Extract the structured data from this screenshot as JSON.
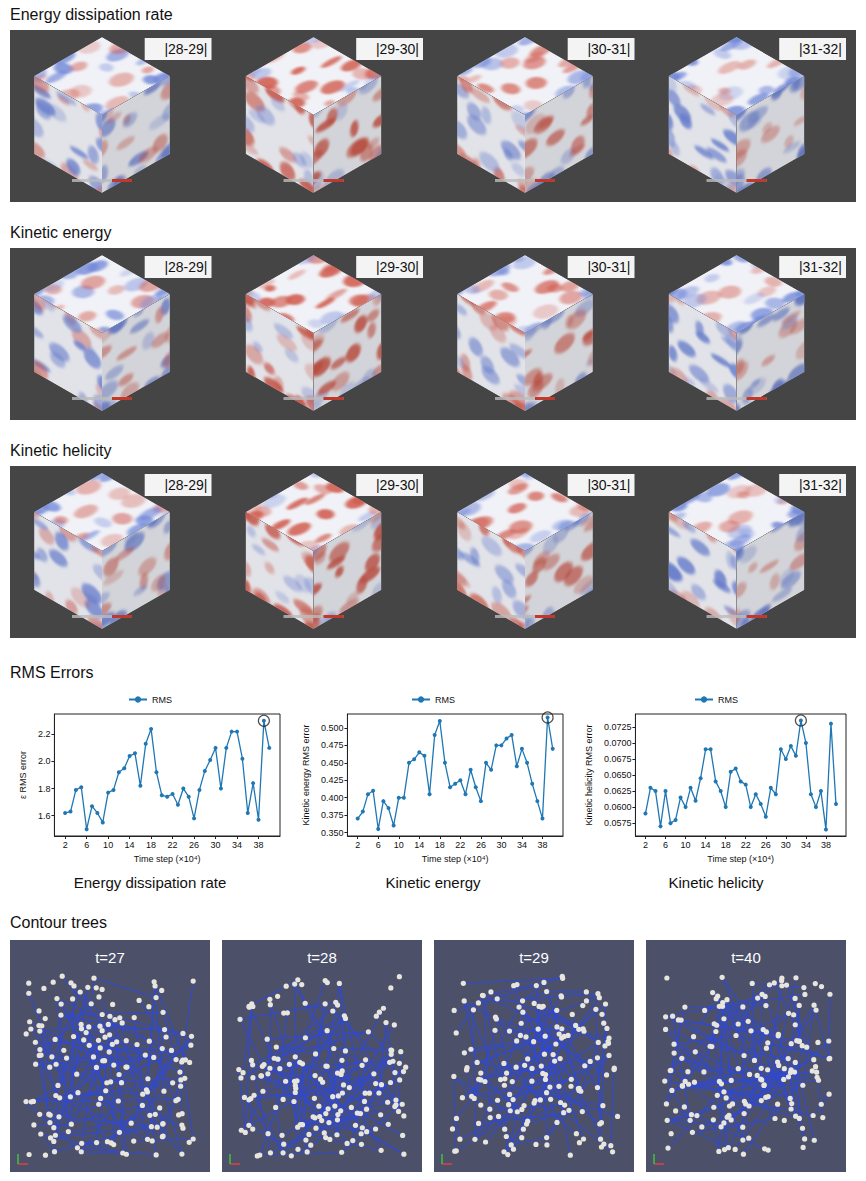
{
  "sections": [
    {
      "title": "Energy dissipation rate",
      "frames": [
        "|28-29|",
        "|29-30|",
        "|30-31|",
        "|31-32|"
      ]
    },
    {
      "title": "Kinetic energy",
      "frames": [
        "|28-29|",
        "|29-30|",
        "|30-31|",
        "|31-32|"
      ]
    },
    {
      "title": "Kinetic helicity",
      "frames": [
        "|28-29|",
        "|29-30|",
        "|30-31|",
        "|31-32|"
      ]
    }
  ],
  "rms_title": "RMS Errors",
  "chart_data": [
    {
      "type": "line",
      "title": "Energy dissipation rate",
      "xlabel": "Time step (×10⁴)",
      "ylabel": "ε RMS error",
      "legend": "top",
      "grid": false,
      "x": [
        2,
        3,
        4,
        5,
        6,
        7,
        8,
        9,
        10,
        11,
        12,
        13,
        14,
        15,
        16,
        17,
        18,
        19,
        20,
        21,
        22,
        23,
        24,
        25,
        26,
        27,
        28,
        29,
        30,
        31,
        32,
        33,
        34,
        35,
        36,
        37,
        38,
        39,
        40
      ],
      "series": [
        {
          "name": "RMS",
          "color": "#1f77b4",
          "marker": "circle",
          "values": [
            1.62,
            1.63,
            1.79,
            1.81,
            1.5,
            1.67,
            1.62,
            1.55,
            1.77,
            1.79,
            1.92,
            1.95,
            2.04,
            2.06,
            1.82,
            2.13,
            2.24,
            1.92,
            1.75,
            1.74,
            1.76,
            1.68,
            1.8,
            1.74,
            1.58,
            1.79,
            1.93,
            2.01,
            2.1,
            1.8,
            2.1,
            2.22,
            2.22,
            2.02,
            1.62,
            1.84,
            1.57,
            2.3,
            2.1
          ]
        }
      ],
      "highlight": {
        "x": 39
      },
      "xlim": [
        0,
        42
      ],
      "xticks": [
        2,
        6,
        10,
        14,
        18,
        22,
        26,
        30,
        34,
        38
      ],
      "ylim": [
        1.45,
        2.35
      ],
      "yticks": [
        1.6,
        1.8,
        {
          "value": 2,
          "label": "2.0"
        },
        2.2
      ]
    },
    {
      "type": "line",
      "title": "Kinetic energy",
      "xlabel": "Time step (×10⁴)",
      "ylabel": "Kinetic energy RMS error",
      "legend": "top",
      "grid": false,
      "x": [
        2,
        3,
        4,
        5,
        6,
        7,
        8,
        9,
        10,
        11,
        12,
        13,
        14,
        15,
        16,
        17,
        18,
        19,
        20,
        21,
        22,
        23,
        24,
        25,
        26,
        27,
        28,
        29,
        30,
        31,
        32,
        33,
        34,
        35,
        36,
        37,
        38,
        39,
        40
      ],
      "series": [
        {
          "name": "RMS",
          "color": "#1f77b4",
          "marker": "circle",
          "values": [
            0.37,
            0.38,
            0.405,
            0.41,
            0.355,
            0.395,
            0.385,
            0.36,
            0.4,
            0.4,
            0.45,
            0.455,
            0.465,
            0.46,
            0.405,
            0.49,
            0.51,
            0.45,
            0.415,
            0.42,
            0.425,
            0.405,
            0.44,
            0.415,
            0.395,
            0.45,
            0.44,
            0.475,
            0.475,
            0.485,
            0.49,
            0.445,
            0.47,
            0.45,
            0.42,
            0.395,
            0.37,
            0.515,
            0.47
          ]
        }
      ],
      "highlight": {
        "x": 39
      },
      "xlim": [
        0,
        42
      ],
      "xticks": [
        2,
        6,
        10,
        14,
        18,
        22,
        26,
        30,
        34,
        38
      ],
      "ylim": [
        0.345,
        0.52
      ],
      "yticks": [
        {
          "value": 0.35,
          "label": "0.350"
        },
        0.375,
        {
          "value": 0.4,
          "label": "0.400"
        },
        0.425,
        {
          "value": 0.45,
          "label": "0.450"
        },
        0.475,
        {
          "value": 0.5,
          "label": "0.500"
        }
      ]
    },
    {
      "type": "line",
      "title": "Kinetic helicity",
      "xlabel": "Time step (×10⁴)",
      "ylabel": "Kinetic helicity RMS error",
      "legend": "top",
      "grid": false,
      "x": [
        2,
        3,
        4,
        5,
        6,
        7,
        8,
        9,
        10,
        11,
        12,
        13,
        14,
        15,
        16,
        17,
        18,
        19,
        20,
        21,
        22,
        23,
        24,
        25,
        26,
        27,
        28,
        29,
        30,
        31,
        32,
        33,
        34,
        35,
        36,
        37,
        38,
        39,
        40
      ],
      "series": [
        {
          "name": "RMS",
          "color": "#1f77b4",
          "marker": "circle",
          "values": [
            0.059,
            0.063,
            0.0625,
            0.057,
            0.0625,
            0.0575,
            0.058,
            0.0615,
            0.06,
            0.063,
            0.061,
            0.0645,
            0.069,
            0.069,
            0.064,
            0.0625,
            0.06,
            0.0655,
            0.066,
            0.064,
            0.0635,
            0.06,
            0.062,
            0.0605,
            0.0585,
            0.063,
            0.062,
            0.069,
            0.0675,
            0.0695,
            0.068,
            0.0735,
            0.07,
            0.062,
            0.06,
            0.0625,
            0.0565,
            0.073,
            0.0605
          ]
        }
      ],
      "highlight": {
        "x": 33
      },
      "xlim": [
        0,
        42
      ],
      "xticks": [
        2,
        6,
        10,
        14,
        18,
        22,
        26,
        30,
        34,
        38
      ],
      "ylim": [
        0.0555,
        0.0745
      ],
      "yticks": [
        0.0575,
        {
          "value": 0.06,
          "label": "0.0600"
        },
        0.0625,
        {
          "value": 0.065,
          "label": "0.0650"
        },
        0.0675,
        {
          "value": 0.07,
          "label": "0.0700"
        },
        0.0725
      ]
    }
  ],
  "contour_trees": {
    "title": "Contour trees",
    "frames": [
      "t=27",
      "t=28",
      "t=29",
      "t=40"
    ]
  }
}
